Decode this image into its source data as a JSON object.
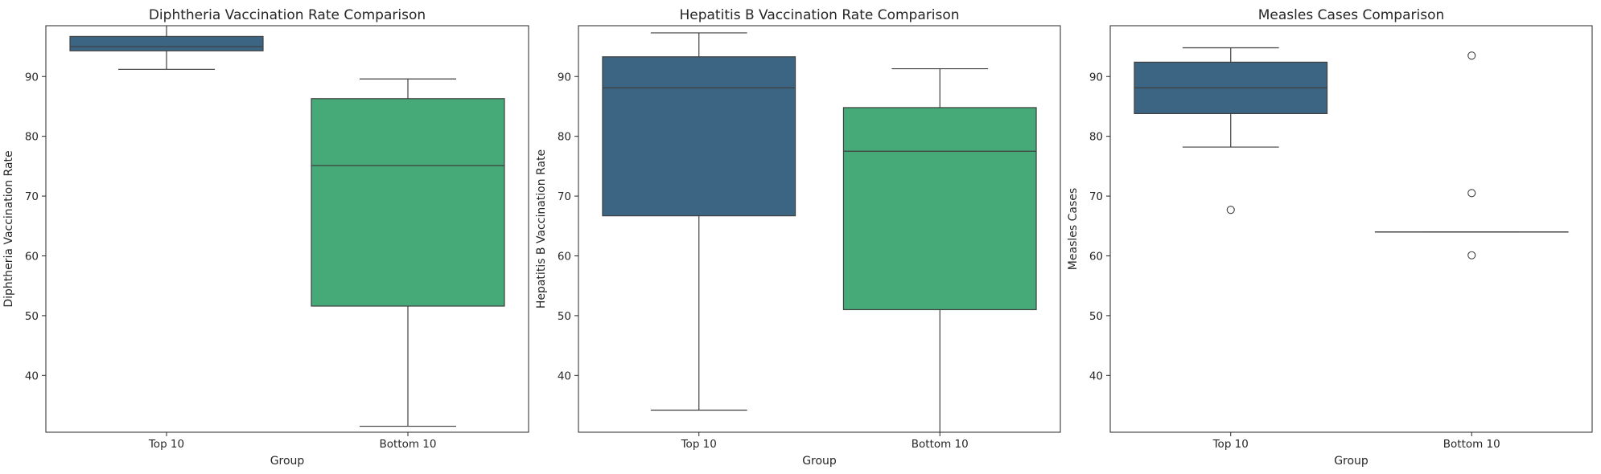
{
  "chart_data": [
    {
      "type": "box",
      "title": "Diphtheria Vaccination Rate Comparison",
      "xlabel": "Group",
      "ylabel": "Diphtheria Vaccination Rate",
      "categories": [
        "Top 10",
        "Bottom 10"
      ],
      "ylim": [
        30.5,
        98.5
      ],
      "yticks": [
        40,
        50,
        60,
        70,
        80,
        90
      ],
      "boxes": [
        {
          "category": "Top 10",
          "color": "#3b6582",
          "whislo": 91.2,
          "q1": 94.3,
          "median": 95.0,
          "q3": 96.7,
          "whishi": 99.0,
          "fliers": []
        },
        {
          "category": "Bottom 10",
          "color": "#46a978",
          "whislo": 31.5,
          "q1": 51.6,
          "median": 75.1,
          "q3": 86.3,
          "whishi": 89.6,
          "fliers": []
        }
      ]
    },
    {
      "type": "box",
      "title": "Hepatitis B Vaccination Rate Comparison",
      "xlabel": "Group",
      "ylabel": "Hepatitis B Vaccination Rate",
      "categories": [
        "Top 10",
        "Bottom 10"
      ],
      "ylim": [
        30.5,
        98.5
      ],
      "yticks": [
        40,
        50,
        60,
        70,
        80,
        90
      ],
      "boxes": [
        {
          "category": "Top 10",
          "color": "#3b6582",
          "whislo": 34.2,
          "q1": 66.7,
          "median": 88.1,
          "q3": 93.3,
          "whishi": 97.3,
          "fliers": []
        },
        {
          "category": "Bottom 10",
          "color": "#46a978",
          "whislo": 30.0,
          "q1": 51.0,
          "median": 77.5,
          "q3": 84.8,
          "whishi": 91.3,
          "fliers": []
        }
      ]
    },
    {
      "type": "box",
      "title": "Measles Cases Comparison",
      "xlabel": "Group",
      "ylabel": "Measles Cases",
      "categories": [
        "Top 10",
        "Bottom 10"
      ],
      "ylim": [
        30.5,
        98.5
      ],
      "yticks": [
        40,
        50,
        60,
        70,
        80,
        90
      ],
      "boxes": [
        {
          "category": "Top 10",
          "color": "#3b6582",
          "whislo": 78.2,
          "q1": 83.8,
          "median": 88.1,
          "q3": 92.4,
          "whishi": 94.8,
          "fliers": [
            67.7
          ]
        },
        {
          "category": "Bottom 10",
          "color": "#46a978",
          "whislo": 64.0,
          "q1": 64.0,
          "median": 64.0,
          "q3": 64.0,
          "whishi": 64.0,
          "fliers": [
            93.5,
            70.5,
            60.1
          ]
        }
      ]
    }
  ]
}
